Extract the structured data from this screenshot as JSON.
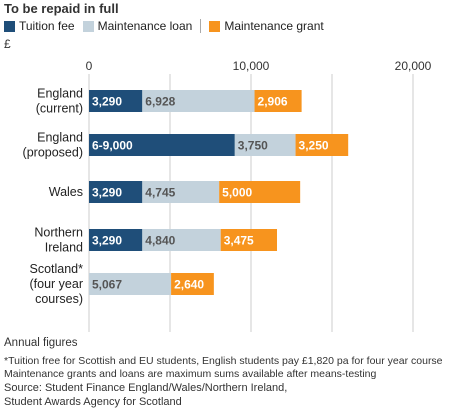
{
  "title": "To be repaid in full",
  "legend": [
    {
      "label": "Tuition fee",
      "color": "#1f4e79"
    },
    {
      "label": "Maintenance loan",
      "color": "#c3d2dc"
    },
    {
      "label": "Maintenance grant",
      "color": "#f7941e"
    }
  ],
  "unit": "£",
  "footer": {
    "annual": "Annual figures",
    "footnote1": "*Tuition free for Scottish and EU students, English students pay £1,820 pa for four year course",
    "footnote2": "Maintenance grants and loans are maximum sums available after means-testing",
    "source1": "Source: Student Finance England/Wales/Northern Ireland,",
    "source2": "Student Awards Agency for Scotland"
  },
  "chart_data": {
    "type": "bar",
    "orientation": "horizontal",
    "stacked": true,
    "title": "To be repaid in full",
    "xlim": [
      0,
      20000
    ],
    "x_ticks": [
      0,
      10000,
      20000
    ],
    "x_tick_labels": [
      "0",
      "10,000",
      "20,000"
    ],
    "grid": true,
    "categories": [
      [
        "England",
        "(current)"
      ],
      [
        "England",
        "(proposed)"
      ],
      [
        "Wales"
      ],
      [
        "Northern",
        "Ireland"
      ],
      [
        "Scotland*",
        "(four year",
        "courses)"
      ]
    ],
    "series": [
      {
        "name": "Tuition fee",
        "color": "#1f4e79",
        "values": [
          3290,
          9000,
          3290,
          3290,
          0
        ],
        "labels": [
          "3,290",
          "6-9,000",
          "3,290",
          "3,290",
          ""
        ]
      },
      {
        "name": "Maintenance loan",
        "color": "#c3d2dc",
        "values": [
          6928,
          3750,
          4745,
          4840,
          5067
        ],
        "labels": [
          "6,928",
          "3,750",
          "4,745",
          "4,840",
          "5,067"
        ]
      },
      {
        "name": "Maintenance grant",
        "color": "#f7941e",
        "values": [
          2906,
          3250,
          5000,
          3475,
          2640
        ],
        "labels": [
          "2,906",
          "3,250",
          "5,000",
          "3,475",
          "2,640"
        ]
      }
    ]
  }
}
